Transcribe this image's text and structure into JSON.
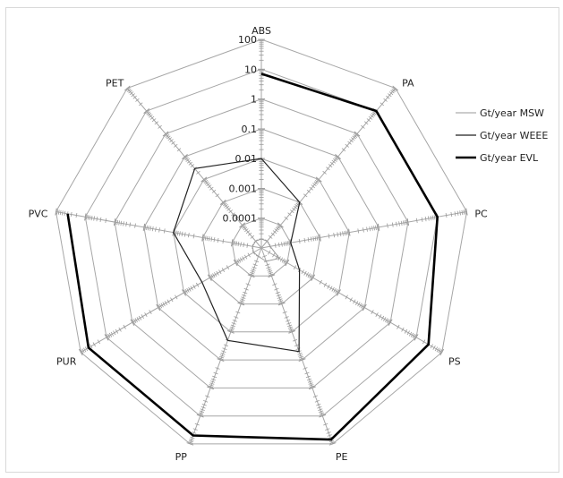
{
  "chart_data": {
    "type": "radar",
    "scale": "log",
    "categories": [
      "ABS",
      "PA",
      "PC",
      "PS",
      "PE",
      "PP",
      "PUR",
      "PVC",
      "PET"
    ],
    "r_min": 1e-05,
    "r_max": 100,
    "tick_labels": [
      "0.0001",
      "0.001",
      "0.01",
      "0.1",
      "1",
      "10",
      "100"
    ],
    "tick_values": [
      0.0001,
      0.001,
      0.01,
      0.1,
      1,
      10,
      100
    ],
    "grid": true,
    "legend_position": "right",
    "series": [
      {
        "name": "Gt/year MSW",
        "color": "#999999",
        "width": 1,
        "values": [
          2e-05,
          2e-05,
          2e-05,
          5e-05,
          3e-05,
          2e-05,
          2e-05,
          2e-05,
          2e-05
        ]
      },
      {
        "name": "Gt/year WEEE",
        "color": "#222222",
        "width": 1.2,
        "values": [
          0.01,
          0.001,
          0.0001,
          0.0003,
          0.05,
          0.02,
          0.002,
          0.01,
          0.03
        ]
      },
      {
        "name": "Gt/year EVL",
        "color": "#000000",
        "width": 2.6,
        "values": [
          7,
          10,
          10,
          30,
          70,
          50,
          50,
          40,
          null
        ]
      }
    ]
  }
}
